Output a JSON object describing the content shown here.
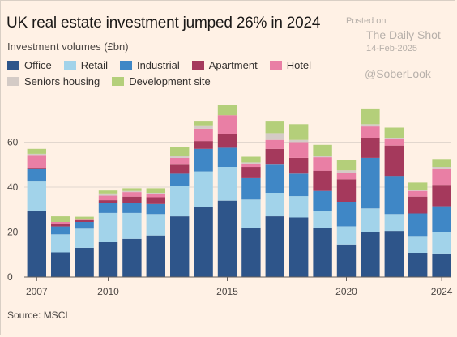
{
  "title": "UK real estate investment jumped 26% in 2024",
  "subtitle": "Investment volumes (£bn)",
  "source": "Source: MSCI",
  "watermark": {
    "line1": "Posted on",
    "line2": "The Daily Shot",
    "line3": "14-Feb-2025",
    "line4": "@SoberLook"
  },
  "chart_data": {
    "type": "bar",
    "stacked": true,
    "title": "UK real estate investment jumped 26% in 2024",
    "ylabel": "Investment volumes (£bn)",
    "xlabel": "",
    "ylim": [
      0,
      80
    ],
    "yticks": [
      0,
      20,
      40,
      60
    ],
    "xticks": [
      "2007",
      "2010",
      "2015",
      "2020",
      "2024"
    ],
    "grid": true,
    "legend_placement": "top",
    "categories": [
      "2007",
      "2008",
      "2009",
      "2010",
      "2011",
      "2012",
      "2013",
      "2014",
      "2015",
      "2016",
      "2017",
      "2018",
      "2019",
      "2020",
      "2021",
      "2022",
      "2023",
      "2024"
    ],
    "series": [
      {
        "name": "Office",
        "color": "#2E558A",
        "values": [
          29.5,
          11,
          13,
          15.5,
          17,
          18.5,
          27,
          31,
          34,
          22,
          27,
          26.5,
          21.8,
          14.5,
          20,
          20.5,
          10.8,
          10.5
        ]
      },
      {
        "name": "Retail",
        "color": "#A2D3EA",
        "values": [
          13,
          8,
          8.5,
          13,
          11.5,
          9.5,
          13.5,
          16,
          15,
          12.5,
          10.5,
          9.5,
          7.5,
          8,
          10.5,
          7.5,
          7.5,
          9.5
        ]
      },
      {
        "name": "Industrial",
        "color": "#3F87C6",
        "values": [
          5.5,
          3.5,
          3,
          4.5,
          4.5,
          4.5,
          5.5,
          10,
          8.5,
          9.5,
          12.5,
          10,
          9,
          11,
          22.5,
          17,
          10,
          11.5
        ]
      },
      {
        "name": "Apartment",
        "color": "#A5395C",
        "values": [
          0.3,
          1,
          0.8,
          1.2,
          2.8,
          3,
          4,
          3.5,
          6,
          5,
          7,
          7,
          9,
          10,
          9,
          13.5,
          7.5,
          9.5
        ]
      },
      {
        "name": "Hotel",
        "color": "#E97FA5",
        "values": [
          6,
          1,
          0.5,
          2,
          2,
          1.5,
          3,
          5.5,
          8.5,
          1.5,
          4,
          7,
          6,
          3,
          5,
          3,
          2.5,
          7
        ]
      },
      {
        "name": "Seniors housing",
        "color": "#D4CBC6",
        "values": [
          0.5,
          0,
          0,
          1,
          0.5,
          0.5,
          1,
          1.5,
          0,
          0.5,
          3,
          1,
          0.5,
          1,
          1,
          0.5,
          0.5,
          1
        ]
      },
      {
        "name": "Development site",
        "color": "#B4CF7A",
        "values": [
          2.2,
          2.5,
          1,
          1.3,
          1.2,
          2,
          4,
          2,
          4.5,
          2.5,
          5.5,
          7,
          5,
          4.5,
          7,
          4.5,
          3.2,
          3.5
        ]
      }
    ]
  }
}
